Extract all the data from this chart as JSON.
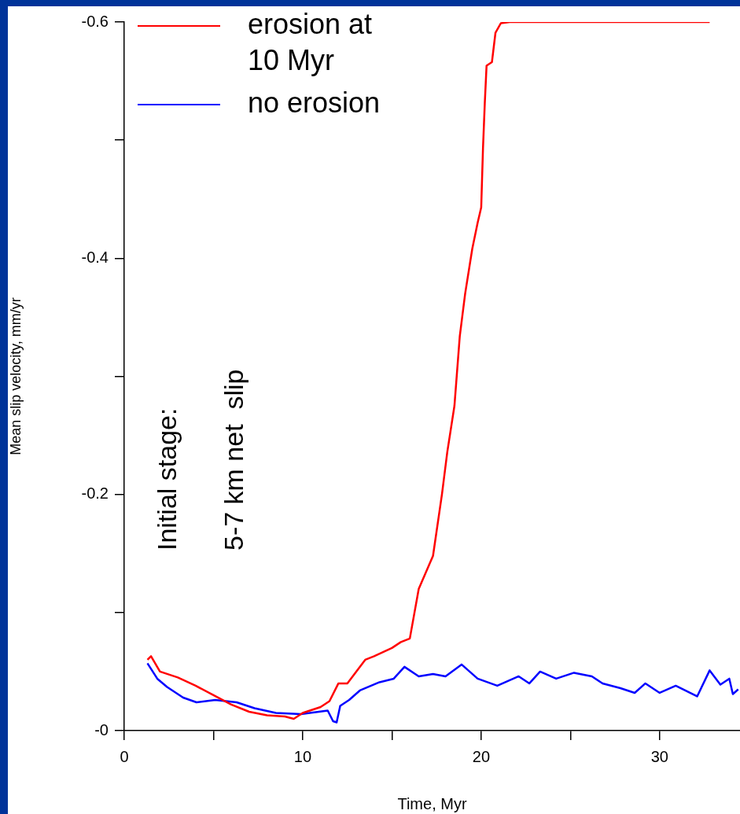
{
  "chart_data": {
    "type": "line",
    "xlabel": "Time, Myr",
    "ylabel": "Mean slip velocity, mm/yr",
    "xlim": [
      0,
      34.5
    ],
    "ylim": [
      0,
      -0.6
    ],
    "xticks": [
      0,
      {
        "value": 5,
        "label": null
      },
      10,
      {
        "value": 15,
        "label": null
      },
      20,
      {
        "value": 25,
        "label": null
      },
      30
    ],
    "yticks": [
      {
        "value": 0,
        "label": "-0"
      },
      {
        "value": -0.1,
        "label": null
      },
      -0.2,
      {
        "value": -0.3,
        "label": null
      },
      -0.4,
      {
        "value": -0.5,
        "label": null
      },
      -0.6
    ],
    "legend": "top left",
    "marker": "none",
    "line_style": "solid",
    "annotations": [
      "Initial stage:",
      "5-7 km net  slip"
    ],
    "series": [
      {
        "name": "erosion at\n10 Myr",
        "color": "#ff0000",
        "x": [
          1.3,
          1.5,
          2,
          3,
          4,
          5,
          6,
          7,
          8,
          9,
          9.5,
          10,
          11,
          11.5,
          12,
          12.5,
          13,
          13.5,
          14,
          15,
          15.5,
          16,
          16.5,
          17.3,
          17.8,
          18.1,
          18.5,
          18.8,
          19.1,
          19.5,
          19.8,
          20,
          20.1,
          20.2,
          20.3,
          20.6,
          20.8,
          21.1,
          21.6,
          32.8
        ],
        "values": [
          -0.06,
          -0.063,
          -0.05,
          -0.045,
          -0.038,
          -0.03,
          -0.022,
          -0.016,
          -0.013,
          -0.012,
          -0.01,
          -0.015,
          -0.02,
          -0.025,
          -0.04,
          -0.04,
          -0.05,
          -0.06,
          -0.063,
          -0.07,
          -0.075,
          -0.078,
          -0.12,
          -0.148,
          -0.2,
          -0.236,
          -0.275,
          -0.334,
          -0.37,
          -0.408,
          -0.43,
          -0.443,
          -0.493,
          -0.531,
          -0.563,
          -0.566,
          -0.591,
          -0.599,
          -0.6,
          -0.6
        ]
      },
      {
        "name": "no erosion",
        "color": "#0000ff",
        "x": [
          1.3,
          1.85,
          2.4,
          3.3,
          4.05,
          5.1,
          6.3,
          7.3,
          8.5,
          9.9,
          11.4,
          11.7,
          11.9,
          12.1,
          12.6,
          13.2,
          14.3,
          15.1,
          15.7,
          16.5,
          17.3,
          18,
          18.9,
          19.8,
          20.9,
          22.1,
          22.7,
          23.3,
          24.2,
          25.2,
          26.2,
          26.8,
          27.8,
          28.6,
          29.2,
          30,
          30.9,
          32.1,
          32.8,
          33.4,
          33.9,
          34.1,
          34.4
        ],
        "values": [
          -0.057,
          -0.044,
          -0.037,
          -0.028,
          -0.024,
          -0.026,
          -0.024,
          -0.019,
          -0.015,
          -0.014,
          -0.017,
          -0.008,
          -0.007,
          -0.021,
          -0.026,
          -0.034,
          -0.041,
          -0.044,
          -0.054,
          -0.046,
          -0.048,
          -0.046,
          -0.056,
          -0.044,
          -0.038,
          -0.046,
          -0.04,
          -0.05,
          -0.044,
          -0.049,
          -0.046,
          -0.04,
          -0.036,
          -0.032,
          -0.04,
          -0.032,
          -0.038,
          -0.029,
          -0.051,
          -0.039,
          -0.044,
          -0.031,
          -0.035
        ]
      }
    ]
  }
}
